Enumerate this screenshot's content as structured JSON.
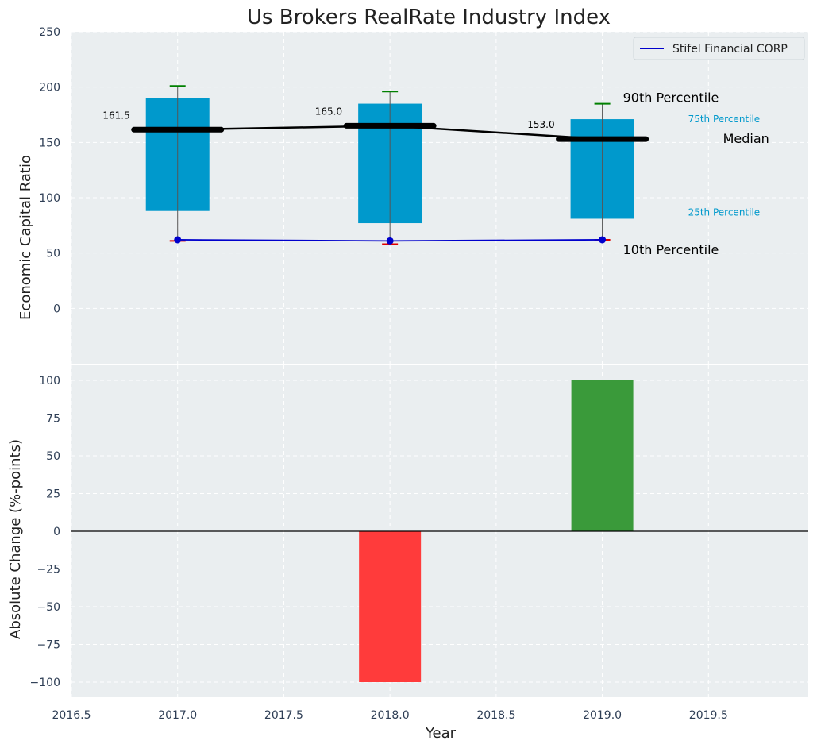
{
  "title": "Us Brokers RealRate Industry Index",
  "chart_data": [
    {
      "type": "box",
      "ylabel": "Economic Capital Ratio",
      "ylim": [
        -50,
        250
      ],
      "yticks": [
        0,
        50,
        100,
        150,
        200,
        250
      ],
      "xlim": [
        2016.5,
        2019.97
      ],
      "grid": true,
      "legend": {
        "position": "top-right",
        "entries": [
          {
            "label": "Stifel Financial CORP",
            "color": "#0000cc"
          }
        ]
      },
      "categories": [
        2017,
        2018,
        2019
      ],
      "boxes": [
        {
          "x": 2017,
          "p10": 61,
          "p25": 88,
          "median": 161.5,
          "p75": 190,
          "p90": 201,
          "median_label": "161.5"
        },
        {
          "x": 2018,
          "p10": 58,
          "p25": 77,
          "median": 165.0,
          "p75": 185,
          "p90": 196,
          "median_label": "165.0"
        },
        {
          "x": 2019,
          "p10": 62,
          "p25": 81,
          "median": 153.0,
          "p75": 171,
          "p90": 185,
          "median_label": "153.0"
        }
      ],
      "company_series": {
        "name": "Stifel Financial CORP",
        "x": [
          2017,
          2018,
          2019
        ],
        "values": [
          62,
          61,
          62
        ]
      },
      "annotations": {
        "p90": "90th Percentile",
        "p75": "75th Percentile",
        "median": "Median",
        "p25": "25th Percentile",
        "p10": "10th Percentile"
      },
      "colors": {
        "box": "#0099cc",
        "whisker_top": "#008000",
        "whisker_bottom": "#e00000",
        "median": "#000000",
        "company": "#0000cc",
        "pct_label": "#0099cc",
        "background": "#eaeef0"
      }
    },
    {
      "type": "bar",
      "xlabel": "Year",
      "ylabel": "Absolute Change (%-points)",
      "ylim": [
        -110,
        110
      ],
      "yticks": [
        -100,
        -75,
        -50,
        -25,
        0,
        25,
        50,
        75,
        100
      ],
      "xlim": [
        2016.5,
        2019.97
      ],
      "xticks": [
        2016.5,
        2017.0,
        2017.5,
        2018.0,
        2018.5,
        2019.0,
        2019.5
      ],
      "xtick_labels": [
        "2016.5",
        "2017.0",
        "2017.5",
        "2018.0",
        "2018.5",
        "2019.0",
        "2019.5"
      ],
      "ytick_labels": [
        "−100",
        "−75",
        "−50",
        "−25",
        "0",
        "25",
        "50",
        "75",
        "100"
      ],
      "grid": true,
      "x": [
        2018,
        2019
      ],
      "values": [
        -100,
        100
      ],
      "colors": {
        "negative": "#ff3b3b",
        "positive": "#3a9a3a",
        "zero_line": "#000000",
        "background": "#eaeef0"
      }
    }
  ]
}
